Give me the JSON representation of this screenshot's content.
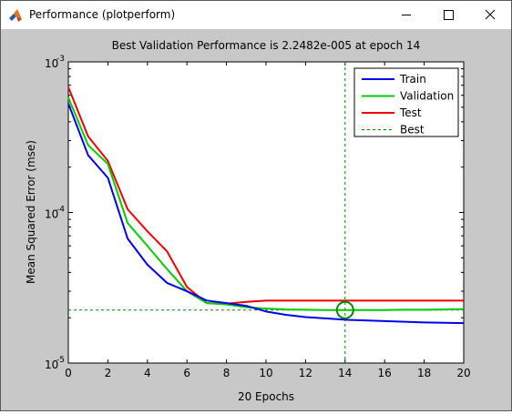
{
  "window": {
    "title": "Performance (plotperform)"
  },
  "colors": {
    "train": "#0000ee",
    "validation": "#00cc00",
    "test": "#ee0000",
    "best": "#008800",
    "figure_bg": "#c8c8c8",
    "axes_bg": "#ffffff"
  },
  "chart_data": {
    "type": "line",
    "title": "Best Validation Performance is 2.2482e-005 at epoch 14",
    "xlabel": "20 Epochs",
    "ylabel": "Mean Squared Error  (mse)",
    "xlim": [
      0,
      20
    ],
    "ylim": [
      1e-05,
      0.001
    ],
    "yscale": "log",
    "grid": false,
    "legend_position": "top-right",
    "xticks": [
      "0",
      "2",
      "4",
      "6",
      "8",
      "10",
      "12",
      "14",
      "16",
      "18",
      "20"
    ],
    "yticks": [
      {
        "base": "10",
        "exp": "-5",
        "value": 1e-05
      },
      {
        "base": "10",
        "exp": "-4",
        "value": 0.0001
      },
      {
        "base": "10",
        "exp": "-3",
        "value": 0.001
      }
    ],
    "x": [
      0,
      1,
      2,
      3,
      4,
      5,
      6,
      7,
      8,
      9,
      10,
      11,
      12,
      13,
      14,
      15,
      16,
      17,
      18,
      19,
      20
    ],
    "series": [
      {
        "name": "Train",
        "color": "#0000ee",
        "style": "solid",
        "values": [
          0.00053,
          0.00024,
          0.00017,
          6.7e-05,
          4.5e-05,
          3.4e-05,
          3e-05,
          2.6e-05,
          2.5e-05,
          2.4e-05,
          2.2e-05,
          2.09e-05,
          2.02e-05,
          1.98e-05,
          1.94e-05,
          1.92e-05,
          1.9e-05,
          1.88e-05,
          1.86e-05,
          1.85e-05,
          1.84e-05
        ]
      },
      {
        "name": "Validation",
        "color": "#00cc00",
        "style": "solid",
        "values": [
          0.00058,
          0.00028,
          0.00021,
          8.5e-05,
          6e-05,
          4.2e-05,
          3e-05,
          2.5e-05,
          2.45e-05,
          2.35e-05,
          2.3e-05,
          2.27e-05,
          2.26e-05,
          2.25e-05,
          2.2482e-05,
          2.25e-05,
          2.25e-05,
          2.26e-05,
          2.26e-05,
          2.27e-05,
          2.28e-05
        ]
      },
      {
        "name": "Test",
        "color": "#ee0000",
        "style": "solid",
        "values": [
          0.00068,
          0.00032,
          0.00022,
          0.000105,
          7.5e-05,
          5.5e-05,
          3.2e-05,
          2.5e-05,
          2.48e-05,
          2.55e-05,
          2.6e-05,
          2.6e-05,
          2.6e-05,
          2.6e-05,
          2.6e-05,
          2.6e-05,
          2.6e-05,
          2.6e-05,
          2.6e-05,
          2.6e-05,
          2.6e-05
        ]
      }
    ],
    "best": {
      "name": "Best",
      "epoch": 14,
      "value": 2.2482e-05,
      "color": "#008800",
      "style": "dashed"
    }
  }
}
